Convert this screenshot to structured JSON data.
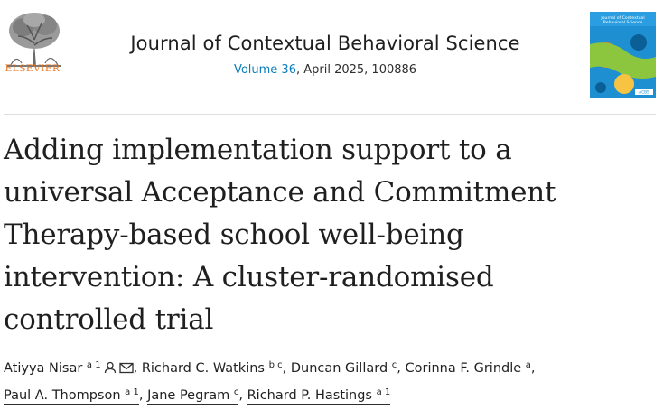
{
  "header": {
    "publisher": "ELSEVIER",
    "journal_title": "Journal of Contextual Behavioral Science",
    "volume": "Volume 36",
    "issue_info": ", April 2025, 100886",
    "cover_title": "Journal of Contextual Behavioral Science",
    "cover_badge": "ACBS",
    "colors": {
      "publisher_orange": "#e9711c",
      "link_blue": "#0c7dbb",
      "cover_blue": "#1e8fd0"
    }
  },
  "article": {
    "title": "Adding implementation support to a universal Acceptance and Commitment Therapy-based school well-being intervention: A cluster-randomised controlled trial"
  },
  "authors": [
    {
      "name": "Atiyya Nisar",
      "affil": "a 1",
      "icons": [
        "person-icon",
        "email-icon"
      ]
    },
    {
      "name": "Richard C. Watkins",
      "affil": "b c"
    },
    {
      "name": "Duncan Gillard",
      "affil": "c"
    },
    {
      "name": "Corinna F. Grindle",
      "affil": "a"
    },
    {
      "name": "Paul A. Thompson",
      "affil": "a 1"
    },
    {
      "name": "Jane Pegram",
      "affil": "c"
    },
    {
      "name": "Richard P. Hastings",
      "affil": "a 1"
    }
  ]
}
